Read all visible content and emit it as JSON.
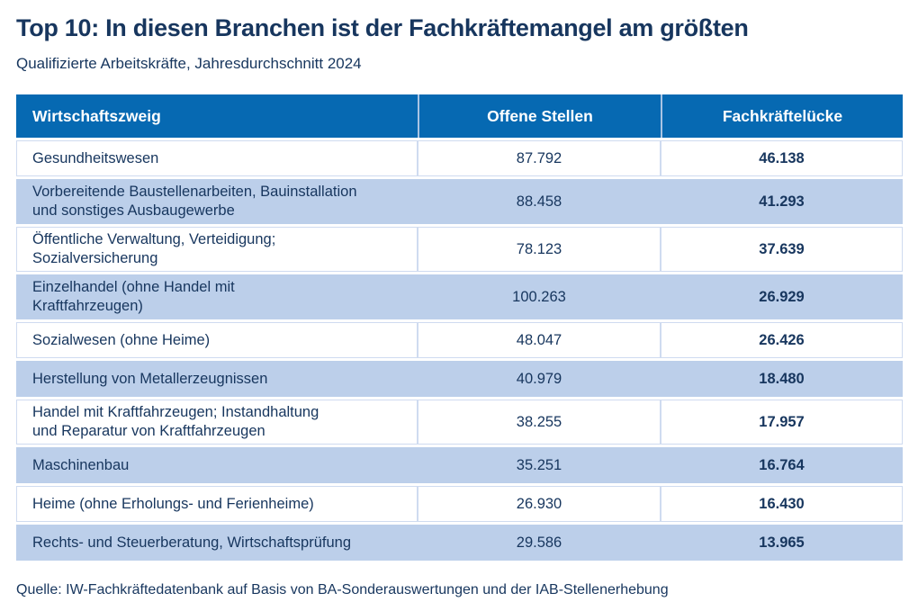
{
  "header": {
    "title": "Top 10: In diesen Branchen ist der Fachkräftemangel am größten",
    "subtitle": "Qualifizierte Arbeitskräfte, Jahresdurchschnitt 2024"
  },
  "footer": {
    "source": "Quelle: IW-Fachkräftedatenbank auf Basis von BA-Sonderauswertungen und der IAB-Stellenerhebung"
  },
  "colors": {
    "header_blue": "#0669b2",
    "row_blue": "#bccfea",
    "text_navy": "#17365e",
    "cell_outline": "#cfdbf0"
  },
  "chart_data": {
    "type": "table",
    "title": "Top 10: In diesen Branchen ist der Fachkräftemangel am größten",
    "subtitle": "Qualifizierte Arbeitskräfte, Jahresdurchschnitt 2024",
    "source": "Quelle: IW-Fachkräftedatenbank auf Basis von BA-Sonderauswertungen und der IAB-Stellenerhebung",
    "columns": [
      "Wirtschaftszweig",
      "Offene Stellen",
      "Fachkräftelücke"
    ],
    "rows": [
      {
        "wirtschaftszweig": "Gesundheitswesen",
        "offene_stellen": "87.792",
        "fachkraefteluecke": "46.138"
      },
      {
        "wirtschaftszweig": "Vorbereitende Baustellenarbeiten, Bauinstallation\nund sonstiges Ausbaugewerbe",
        "offene_stellen": "88.458",
        "fachkraefteluecke": "41.293"
      },
      {
        "wirtschaftszweig": "Öffentliche Verwaltung, Verteidigung;\nSozialversicherung",
        "offene_stellen": "78.123",
        "fachkraefteluecke": "37.639"
      },
      {
        "wirtschaftszweig": "Einzelhandel (ohne Handel mit\nKraftfahrzeugen)",
        "offene_stellen": "100.263",
        "fachkraefteluecke": "26.929"
      },
      {
        "wirtschaftszweig": "Sozialwesen (ohne Heime)",
        "offene_stellen": "48.047",
        "fachkraefteluecke": "26.426"
      },
      {
        "wirtschaftszweig": "Herstellung von Metallerzeugnissen",
        "offene_stellen": "40.979",
        "fachkraefteluecke": "18.480"
      },
      {
        "wirtschaftszweig": "Handel mit Kraftfahrzeugen; Instandhaltung\nund Reparatur von Kraftfahrzeugen",
        "offene_stellen": "38.255",
        "fachkraefteluecke": "17.957"
      },
      {
        "wirtschaftszweig": "Maschinenbau",
        "offene_stellen": "35.251",
        "fachkraefteluecke": "16.764"
      },
      {
        "wirtschaftszweig": "Heime (ohne Erholungs- und Ferienheime)",
        "offene_stellen": "26.930",
        "fachkraefteluecke": "16.430"
      },
      {
        "wirtschaftszweig": "Rechts- und Steuerberatung, Wirtschaftsprüfung",
        "offene_stellen": "29.586",
        "fachkraefteluecke": "13.965"
      }
    ],
    "layout": {
      "row_striping": [
        "white",
        "light_blue"
      ],
      "value_columns_align": "center",
      "gap_column_bold": true,
      "grid": "white gaps between rows, light dividers between columns"
    }
  }
}
